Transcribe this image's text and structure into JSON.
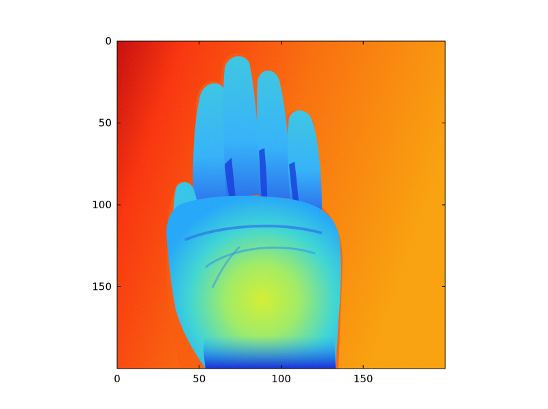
{
  "figure": {
    "background_color": "#ffffff"
  },
  "axes": {
    "x_ticks": [
      0,
      50,
      100,
      150
    ],
    "y_ticks": [
      0,
      50,
      100,
      150
    ],
    "x_range": [
      0,
      199
    ],
    "y_range": [
      0,
      199
    ],
    "y_inverted": true,
    "grid": false,
    "frame_color": "#000000"
  },
  "image": {
    "subject": "hand-palm-thermal-image",
    "colormap": "jet",
    "colors": {
      "background_hot": "#cc0000",
      "background_warm": "#ff6600",
      "background_mid": "#ff9a00",
      "hand_cool": "#1ea0ff",
      "hand_mid": "#22e0e0",
      "hand_warm": "#c8f23a",
      "hand_deep": "#0a28d8"
    }
  }
}
